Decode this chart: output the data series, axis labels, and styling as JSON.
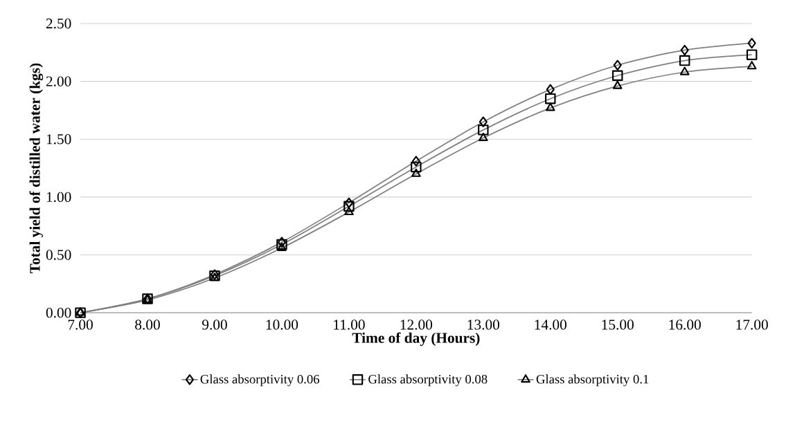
{
  "chart_data": {
    "type": "line",
    "xlabel": "Time of day (Hours)",
    "ylabel": "Total yield of distilled water (kgs)",
    "x": [
      7,
      8,
      9,
      10,
      11,
      12,
      13,
      14,
      15,
      16,
      17
    ],
    "series": [
      {
        "name": "Glass absorptivity 0.06",
        "color": "#7f7f7f",
        "marker": "diamond",
        "values": [
          0,
          0.12,
          0.33,
          0.61,
          0.95,
          1.31,
          1.65,
          1.93,
          2.14,
          2.27,
          2.33
        ]
      },
      {
        "name": "Glass absorptivity 0.08",
        "color": "#7f7f7f",
        "marker": "square",
        "values": [
          0,
          0.12,
          0.32,
          0.59,
          0.92,
          1.26,
          1.58,
          1.85,
          2.05,
          2.18,
          2.23
        ]
      },
      {
        "name": "Glass absorptivity 0.1",
        "color": "#7f7f7f",
        "marker": "triangle",
        "values": [
          0,
          0.11,
          0.3,
          0.56,
          0.87,
          1.2,
          1.51,
          1.77,
          1.96,
          2.08,
          2.13
        ]
      }
    ],
    "xlim": [
      7,
      17
    ],
    "ylim": [
      0,
      2.5
    ],
    "xticks": [
      {
        "value": 7,
        "label": "7.00"
      },
      {
        "value": 8,
        "label": "8.00"
      },
      {
        "value": 9,
        "label": "9.00"
      },
      {
        "value": 10,
        "label": "10.00"
      },
      {
        "value": 11,
        "label": "11.00"
      },
      {
        "value": 12,
        "label": "12.00"
      },
      {
        "value": 13,
        "label": "13.00"
      },
      {
        "value": 14,
        "label": "14.00"
      },
      {
        "value": 15,
        "label": "15.00"
      },
      {
        "value": 16,
        "label": "16.00"
      },
      {
        "value": 17,
        "label": "17.00"
      }
    ],
    "yticks": [
      {
        "value": 0,
        "label": "0.00"
      },
      {
        "value": 0.5,
        "label": "0.50"
      },
      {
        "value": 1,
        "label": "1.00"
      },
      {
        "value": 1.5,
        "label": "1.50"
      },
      {
        "value": 2,
        "label": "2.00"
      },
      {
        "value": 2.5,
        "label": "2.50"
      }
    ],
    "grid": "y",
    "legend": "bottom",
    "line_style": "solid"
  }
}
